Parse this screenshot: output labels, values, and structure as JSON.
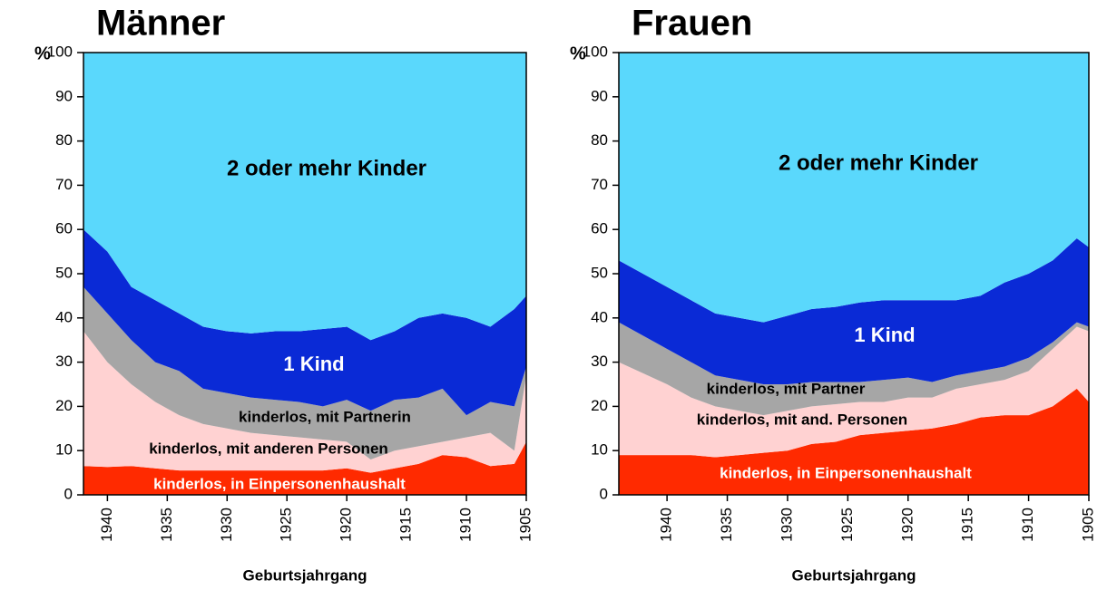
{
  "chart_data": [
    {
      "type": "stacked_area",
      "title": "Männer",
      "y_label": "%",
      "x_label": "Geburtsjahrgang",
      "x": [
        1942,
        1940,
        1938,
        1936,
        1934,
        1932,
        1930,
        1928,
        1926,
        1924,
        1922,
        1920,
        1918,
        1916,
        1914,
        1912,
        1910,
        1908,
        1906,
        1905
      ],
      "xlim": [
        1942,
        1905
      ],
      "xticks": [
        1940,
        1935,
        1930,
        1925,
        1920,
        1915,
        1910,
        1905
      ],
      "ylim": [
        0,
        100
      ],
      "yticks": [
        0,
        10,
        20,
        30,
        40,
        50,
        60,
        70,
        80,
        90,
        100
      ],
      "annotations": [
        "2 oder mehr Kinder",
        "1 Kind",
        "kinderlos, mit Partnerin",
        "kinderlos, mit anderen Personen",
        "kinderlos, in Einpersonenhaushalt"
      ],
      "series": [
        {
          "name": "kinderlos, in Einpersonenhaushalt",
          "color": "#ff2a00",
          "values": [
            6.5,
            6.3,
            6.5,
            6,
            5.5,
            5.5,
            5.5,
            5.5,
            5.5,
            5.5,
            5.5,
            6,
            5,
            6,
            7,
            9,
            8.5,
            6.5,
            7,
            12
          ]
        },
        {
          "name": "kinderlos, mit anderen Personen",
          "color": "#ffd2d2",
          "values": [
            30.5,
            23.7,
            18.5,
            15,
            12.5,
            10.5,
            9.5,
            8.5,
            8,
            7.5,
            7,
            6,
            3,
            4,
            4,
            3,
            4.5,
            7.5,
            3,
            15
          ]
        },
        {
          "name": "kinderlos, mit Partnerin",
          "color": "#a6a6a6",
          "values": [
            10,
            11,
            10,
            9,
            10,
            8,
            8,
            8,
            8,
            8,
            7.5,
            9.5,
            11,
            11.5,
            11,
            12,
            5,
            7,
            10,
            2
          ]
        },
        {
          "name": "1 Kind",
          "color": "#0a2ad6",
          "values": [
            13,
            14,
            12,
            14,
            13,
            14,
            14,
            14.5,
            15.5,
            16,
            17.5,
            16.5,
            16,
            15.5,
            18,
            17,
            22,
            17,
            22,
            16
          ]
        },
        {
          "name": "2 oder mehr Kinder",
          "color": "#5ad8fc",
          "values": [
            40,
            45,
            53,
            56,
            59,
            62,
            63,
            63.5,
            63,
            63,
            62.5,
            62,
            65,
            63,
            60,
            59,
            60,
            62,
            58,
            55
          ]
        }
      ]
    },
    {
      "type": "stacked_area",
      "title": "Frauen",
      "y_label": "%",
      "x_label": "Geburtsjahrgang",
      "x": [
        1944,
        1940,
        1938,
        1936,
        1934,
        1932,
        1930,
        1928,
        1926,
        1924,
        1922,
        1920,
        1918,
        1916,
        1914,
        1912,
        1910,
        1908,
        1906,
        1905
      ],
      "xlim": [
        1944,
        1905
      ],
      "xticks": [
        1940,
        1935,
        1930,
        1925,
        1920,
        1915,
        1910,
        1905
      ],
      "ylim": [
        0,
        100
      ],
      "yticks": [
        0,
        10,
        20,
        30,
        40,
        50,
        60,
        70,
        80,
        90,
        100
      ],
      "annotations": [
        "2 oder mehr Kinder",
        "1 Kind",
        "kinderlos, mit Partner",
        "kinderlos, mit and. Personen",
        "kinderlos, in Einpersonenhaushalt"
      ],
      "series": [
        {
          "name": "kinderlos, in Einpersonenhaushalt",
          "color": "#ff2a00",
          "values": [
            9,
            9,
            9,
            8.5,
            9,
            9.5,
            10,
            11.5,
            12,
            13.5,
            14,
            14.5,
            15,
            16,
            17.5,
            18,
            18,
            20,
            24,
            21
          ]
        },
        {
          "name": "kinderlos, mit and. Personen",
          "color": "#ffd2d2",
          "values": [
            21,
            16,
            13,
            11.5,
            10,
            8.5,
            9,
            8.5,
            8.5,
            7.5,
            7,
            7.5,
            7,
            8,
            7.5,
            8,
            10,
            13,
            14,
            16
          ]
        },
        {
          "name": "kinderlos, mit Partner",
          "color": "#a6a6a6",
          "values": [
            9,
            8,
            8,
            7,
            7,
            7,
            6,
            5.5,
            5,
            4.5,
            5,
            4.5,
            3.5,
            3,
            3,
            3,
            3,
            1.5,
            1,
            1
          ]
        },
        {
          "name": "1 Kind",
          "color": "#0a2ad6",
          "values": [
            14,
            14,
            14,
            14,
            14,
            14,
            15.5,
            16.5,
            17,
            18,
            18,
            17.5,
            18.5,
            17,
            17,
            19,
            19,
            18.5,
            19,
            18
          ]
        },
        {
          "name": "2 oder mehr Kinder",
          "color": "#5ad8fc",
          "values": [
            47,
            53,
            56,
            59,
            60,
            61,
            59.5,
            58,
            57.5,
            56.5,
            56,
            56,
            56,
            56,
            55,
            52,
            50,
            47,
            42,
            44
          ]
        }
      ]
    }
  ]
}
